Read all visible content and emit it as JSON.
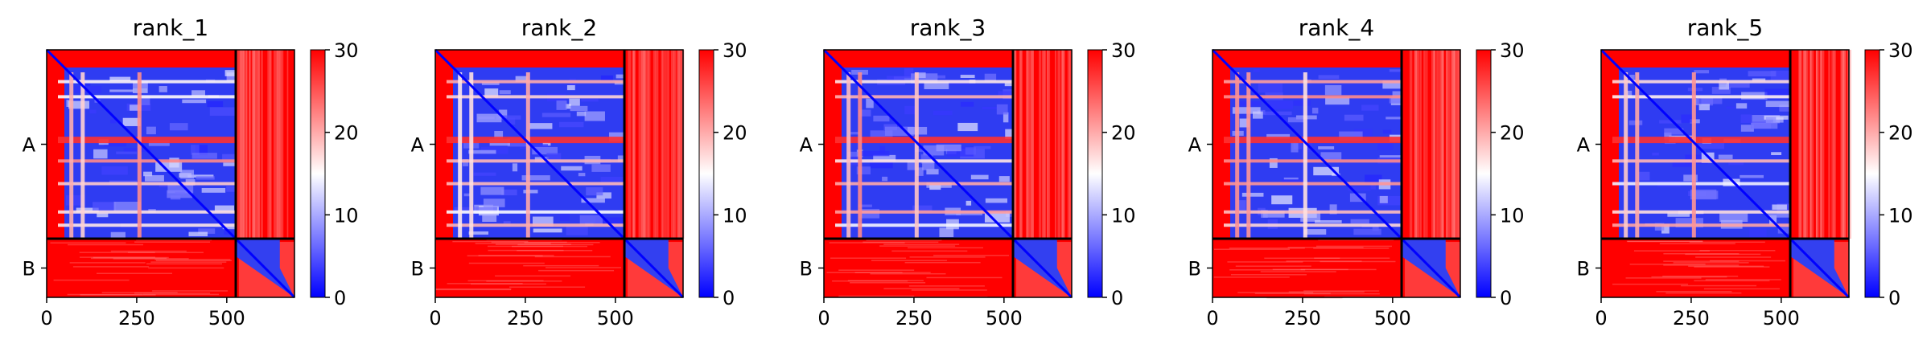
{
  "chart_data": [
    {
      "type": "heatmap",
      "title": "rank_1",
      "chains": [
        "A",
        "B"
      ],
      "chain_boundary": 525,
      "sequence_length": 688,
      "x_ticks": [
        0,
        250,
        500
      ],
      "colormap": "bwr",
      "colorbar": {
        "min": 0,
        "max": 30,
        "ticks": [
          0,
          10,
          20,
          30
        ]
      }
    },
    {
      "type": "heatmap",
      "title": "rank_2",
      "chains": [
        "A",
        "B"
      ],
      "chain_boundary": 525,
      "sequence_length": 688,
      "x_ticks": [
        0,
        250,
        500
      ],
      "colormap": "bwr",
      "colorbar": {
        "min": 0,
        "max": 30,
        "ticks": [
          0,
          10,
          20,
          30
        ]
      }
    },
    {
      "type": "heatmap",
      "title": "rank_3",
      "chains": [
        "A",
        "B"
      ],
      "chain_boundary": 525,
      "sequence_length": 688,
      "x_ticks": [
        0,
        250,
        500
      ],
      "colormap": "bwr",
      "colorbar": {
        "min": 0,
        "max": 30,
        "ticks": [
          0,
          10,
          20,
          30
        ]
      }
    },
    {
      "type": "heatmap",
      "title": "rank_4",
      "chains": [
        "A",
        "B"
      ],
      "chain_boundary": 525,
      "sequence_length": 688,
      "x_ticks": [
        0,
        250,
        500
      ],
      "colormap": "bwr",
      "colorbar": {
        "min": 0,
        "max": 30,
        "ticks": [
          0,
          10,
          20,
          30
        ]
      }
    },
    {
      "type": "heatmap",
      "title": "rank_5",
      "chains": [
        "A",
        "B"
      ],
      "chain_boundary": 525,
      "sequence_length": 688,
      "x_ticks": [
        0,
        250,
        500
      ],
      "colormap": "bwr",
      "colorbar": {
        "min": 0,
        "max": 30,
        "ticks": [
          0,
          10,
          20,
          30
        ]
      }
    }
  ],
  "colors": {
    "low": "#0000ff",
    "mid": "#ffffff",
    "high": "#ff0000",
    "boundary": "#000000"
  }
}
